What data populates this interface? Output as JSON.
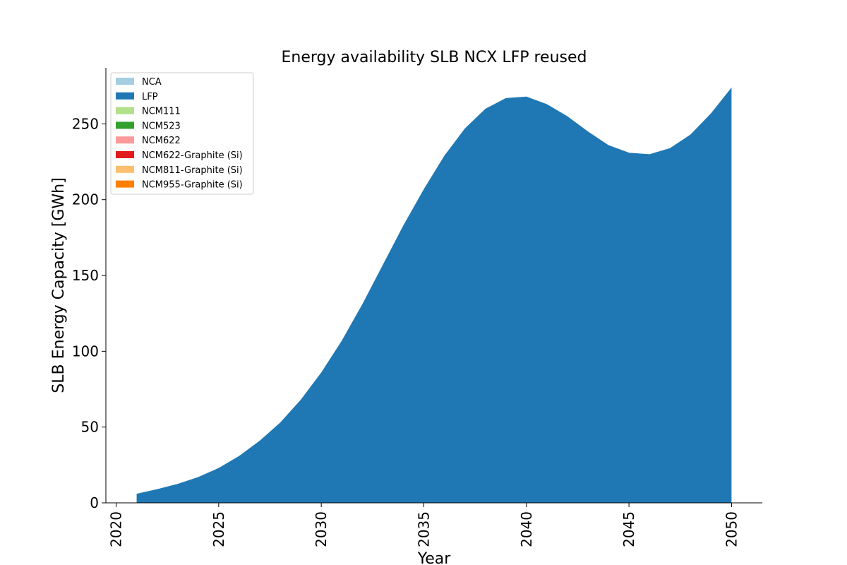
{
  "chart_data": {
    "type": "area",
    "stacked": true,
    "title": "Energy availability SLB NCX LFP reused",
    "xlabel": "Year",
    "ylabel": "SLB Energy Capacity [GWh]",
    "xlim": [
      2019.5,
      2051.5
    ],
    "ylim": [
      0,
      287
    ],
    "xticks": [
      2020,
      2025,
      2030,
      2035,
      2040,
      2045,
      2050
    ],
    "yticks": [
      0,
      50,
      100,
      150,
      200,
      250
    ],
    "legend_position": "top-left",
    "grid": false,
    "x": [
      2021,
      2022,
      2023,
      2024,
      2025,
      2026,
      2027,
      2028,
      2029,
      2030,
      2031,
      2032,
      2033,
      2034,
      2035,
      2036,
      2037,
      2038,
      2039,
      2040,
      2041,
      2042,
      2043,
      2044,
      2045,
      2046,
      2047,
      2048,
      2049,
      2050
    ],
    "series": [
      {
        "name": "NCA",
        "color": "#a6cee3",
        "values": [
          0,
          0,
          0,
          0,
          0,
          0,
          0,
          0,
          0,
          0,
          0,
          0,
          0,
          0,
          0,
          0,
          0,
          0,
          0,
          0,
          0,
          0,
          0,
          0,
          0,
          0,
          0,
          0,
          0,
          0
        ]
      },
      {
        "name": "LFP",
        "color": "#1f78b4",
        "values": [
          6,
          9,
          12.5,
          17,
          23,
          31,
          41,
          53,
          68,
          86,
          107,
          131,
          157,
          183,
          207,
          229,
          247,
          260,
          267,
          268,
          263,
          255,
          245,
          236,
          231,
          230,
          234,
          243,
          257,
          274
        ]
      },
      {
        "name": "NCM111",
        "color": "#b2df8a",
        "values": [
          0,
          0,
          0,
          0,
          0,
          0,
          0,
          0,
          0,
          0,
          0,
          0,
          0,
          0,
          0,
          0,
          0,
          0,
          0,
          0,
          0,
          0,
          0,
          0,
          0,
          0,
          0,
          0,
          0,
          0
        ]
      },
      {
        "name": "NCM523",
        "color": "#33a02c",
        "values": [
          0,
          0,
          0,
          0,
          0,
          0,
          0,
          0,
          0,
          0,
          0,
          0,
          0,
          0,
          0,
          0,
          0,
          0,
          0,
          0,
          0,
          0,
          0,
          0,
          0,
          0,
          0,
          0,
          0,
          0
        ]
      },
      {
        "name": "NCM622",
        "color": "#fb9a99",
        "values": [
          0,
          0,
          0,
          0,
          0,
          0,
          0,
          0,
          0,
          0,
          0,
          0,
          0,
          0,
          0,
          0,
          0,
          0,
          0,
          0,
          0,
          0,
          0,
          0,
          0,
          0,
          0,
          0,
          0,
          0
        ]
      },
      {
        "name": "NCM622-Graphite (Si)",
        "color": "#e31a1c",
        "values": [
          0,
          0,
          0,
          0,
          0,
          0,
          0,
          0,
          0,
          0,
          0,
          0,
          0,
          0,
          0,
          0,
          0,
          0,
          0,
          0,
          0,
          0,
          0,
          0,
          0,
          0,
          0,
          0,
          0,
          0
        ]
      },
      {
        "name": "NCM811-Graphite (Si)",
        "color": "#fdbf6f",
        "values": [
          0,
          0,
          0,
          0,
          0,
          0,
          0,
          0,
          0,
          0,
          0,
          0,
          0,
          0,
          0,
          0,
          0,
          0,
          0,
          0,
          0,
          0,
          0,
          0,
          0,
          0,
          0,
          0,
          0,
          0
        ]
      },
      {
        "name": "NCM955-Graphite (Si)",
        "color": "#ff7f00",
        "values": [
          0,
          0,
          0,
          0,
          0,
          0,
          0,
          0,
          0,
          0,
          0,
          0,
          0,
          0,
          0,
          0,
          0,
          0,
          0,
          0,
          0,
          0,
          0,
          0,
          0,
          0,
          0,
          0,
          0,
          0
        ]
      }
    ]
  }
}
